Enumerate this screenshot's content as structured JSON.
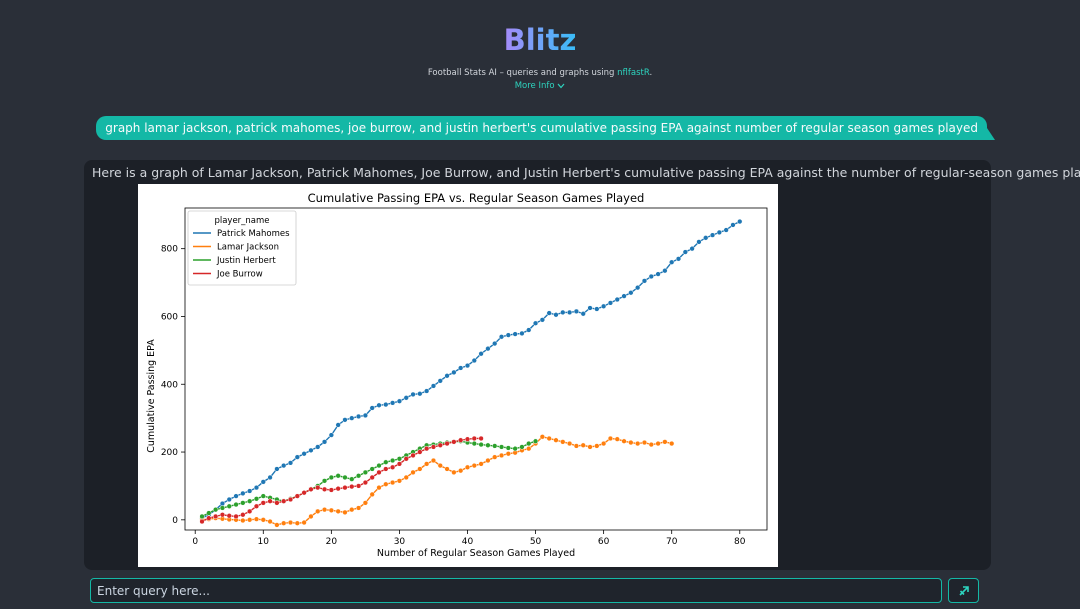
{
  "header": {
    "logo": "Blitz",
    "tagline_prefix": "Football Stats AI – queries and graphs using ",
    "tagline_link": "nflfastR",
    "tagline_suffix": ".",
    "more_info": "More Info"
  },
  "colors": {
    "accent": "#14b8a6",
    "logo_gradient": [
      "#a78bfa",
      "#38bdf8"
    ]
  },
  "conversation": {
    "user_query": "graph lamar jackson, patrick mahomes, joe burrow, and justin herbert's cumulative passing EPA against number of regular season games played",
    "response_text": "Here is a graph of Lamar Jackson, Patrick Mahomes, Joe Burrow, and Justin Herbert's cumulative passing EPA against the number of regular-season games played."
  },
  "input": {
    "placeholder": "Enter query here...",
    "send_icon": "send-icon"
  },
  "chart_data": {
    "type": "line",
    "title": "Cumulative Passing EPA vs. Regular Season Games Played",
    "xlabel": "Number of Regular Season Games Played",
    "ylabel": "Cumulative Passing EPA",
    "xlim": [
      -1.5,
      84
    ],
    "ylim": [
      -30,
      920
    ],
    "xticks": [
      0,
      10,
      20,
      30,
      40,
      50,
      60,
      70,
      80
    ],
    "yticks": [
      0,
      200,
      400,
      600,
      800
    ],
    "legend_title": "player_name",
    "legend_position": "top-left",
    "grid": false,
    "series": [
      {
        "name": "Patrick Mahomes",
        "color": "#1f77b4",
        "points": [
          [
            1,
            5
          ],
          [
            2,
            15
          ],
          [
            3,
            30
          ],
          [
            4,
            48
          ],
          [
            5,
            60
          ],
          [
            6,
            70
          ],
          [
            7,
            78
          ],
          [
            8,
            85
          ],
          [
            9,
            95
          ],
          [
            10,
            112
          ],
          [
            11,
            125
          ],
          [
            12,
            150
          ],
          [
            13,
            160
          ],
          [
            14,
            168
          ],
          [
            15,
            185
          ],
          [
            16,
            195
          ],
          [
            17,
            205
          ],
          [
            18,
            215
          ],
          [
            19,
            230
          ],
          [
            20,
            250
          ],
          [
            21,
            280
          ],
          [
            22,
            295
          ],
          [
            23,
            300
          ],
          [
            24,
            305
          ],
          [
            25,
            308
          ],
          [
            26,
            330
          ],
          [
            27,
            338
          ],
          [
            28,
            340
          ],
          [
            29,
            345
          ],
          [
            30,
            350
          ],
          [
            31,
            360
          ],
          [
            32,
            370
          ],
          [
            33,
            372
          ],
          [
            34,
            380
          ],
          [
            35,
            395
          ],
          [
            36,
            410
          ],
          [
            37,
            425
          ],
          [
            38,
            435
          ],
          [
            39,
            448
          ],
          [
            40,
            455
          ],
          [
            41,
            470
          ],
          [
            42,
            490
          ],
          [
            43,
            505
          ],
          [
            44,
            520
          ],
          [
            45,
            540
          ],
          [
            46,
            545
          ],
          [
            47,
            548
          ],
          [
            48,
            550
          ],
          [
            49,
            560
          ],
          [
            50,
            580
          ],
          [
            51,
            590
          ],
          [
            52,
            610
          ],
          [
            53,
            605
          ],
          [
            54,
            612
          ],
          [
            55,
            612
          ],
          [
            56,
            615
          ],
          [
            57,
            608
          ],
          [
            58,
            625
          ],
          [
            59,
            622
          ],
          [
            60,
            630
          ],
          [
            61,
            640
          ],
          [
            62,
            650
          ],
          [
            63,
            660
          ],
          [
            64,
            670
          ],
          [
            65,
            685
          ],
          [
            66,
            705
          ],
          [
            67,
            718
          ],
          [
            68,
            725
          ],
          [
            69,
            735
          ],
          [
            70,
            760
          ],
          [
            71,
            770
          ],
          [
            72,
            790
          ],
          [
            73,
            800
          ],
          [
            74,
            820
          ],
          [
            75,
            832
          ],
          [
            76,
            840
          ],
          [
            77,
            848
          ],
          [
            78,
            855
          ],
          [
            79,
            870
          ],
          [
            80,
            880
          ]
        ]
      },
      {
        "name": "Lamar Jackson",
        "color": "#ff7f0e",
        "points": [
          [
            1,
            0
          ],
          [
            2,
            2
          ],
          [
            3,
            5
          ],
          [
            4,
            3
          ],
          [
            5,
            1
          ],
          [
            6,
            0
          ],
          [
            7,
            -2
          ],
          [
            8,
            0
          ],
          [
            9,
            2
          ],
          [
            10,
            0
          ],
          [
            11,
            -5
          ],
          [
            12,
            -15
          ],
          [
            13,
            -10
          ],
          [
            14,
            -8
          ],
          [
            15,
            -10
          ],
          [
            16,
            -8
          ],
          [
            17,
            10
          ],
          [
            18,
            25
          ],
          [
            19,
            30
          ],
          [
            20,
            28
          ],
          [
            21,
            25
          ],
          [
            22,
            22
          ],
          [
            23,
            30
          ],
          [
            24,
            35
          ],
          [
            25,
            50
          ],
          [
            26,
            75
          ],
          [
            27,
            95
          ],
          [
            28,
            105
          ],
          [
            29,
            110
          ],
          [
            30,
            115
          ],
          [
            31,
            125
          ],
          [
            32,
            140
          ],
          [
            33,
            150
          ],
          [
            34,
            165
          ],
          [
            35,
            175
          ],
          [
            36,
            160
          ],
          [
            37,
            150
          ],
          [
            38,
            140
          ],
          [
            39,
            145
          ],
          [
            40,
            155
          ],
          [
            41,
            160
          ],
          [
            42,
            165
          ],
          [
            43,
            175
          ],
          [
            44,
            185
          ],
          [
            45,
            190
          ],
          [
            46,
            195
          ],
          [
            47,
            198
          ],
          [
            48,
            205
          ],
          [
            49,
            210
          ],
          [
            50,
            225
          ],
          [
            51,
            245
          ],
          [
            52,
            240
          ],
          [
            53,
            235
          ],
          [
            54,
            230
          ],
          [
            55,
            225
          ],
          [
            56,
            218
          ],
          [
            57,
            220
          ],
          [
            58,
            215
          ],
          [
            59,
            218
          ],
          [
            60,
            225
          ],
          [
            61,
            240
          ],
          [
            62,
            238
          ],
          [
            63,
            232
          ],
          [
            64,
            228
          ],
          [
            65,
            225
          ],
          [
            66,
            228
          ],
          [
            67,
            222
          ],
          [
            68,
            225
          ],
          [
            69,
            230
          ],
          [
            70,
            225
          ]
        ]
      },
      {
        "name": "Justin Herbert",
        "color": "#2ca02c",
        "points": [
          [
            1,
            10
          ],
          [
            2,
            20
          ],
          [
            3,
            30
          ],
          [
            4,
            35
          ],
          [
            5,
            40
          ],
          [
            6,
            45
          ],
          [
            7,
            50
          ],
          [
            8,
            55
          ],
          [
            9,
            62
          ],
          [
            10,
            70
          ],
          [
            11,
            65
          ],
          [
            12,
            60
          ],
          [
            13,
            55
          ],
          [
            14,
            62
          ],
          [
            15,
            70
          ],
          [
            16,
            80
          ],
          [
            17,
            90
          ],
          [
            18,
            100
          ],
          [
            19,
            115
          ],
          [
            20,
            125
          ],
          [
            21,
            130
          ],
          [
            22,
            125
          ],
          [
            23,
            120
          ],
          [
            24,
            130
          ],
          [
            25,
            140
          ],
          [
            26,
            150
          ],
          [
            27,
            160
          ],
          [
            28,
            170
          ],
          [
            29,
            175
          ],
          [
            30,
            180
          ],
          [
            31,
            190
          ],
          [
            32,
            200
          ],
          [
            33,
            210
          ],
          [
            34,
            220
          ],
          [
            35,
            222
          ],
          [
            36,
            225
          ],
          [
            37,
            228
          ],
          [
            38,
            230
          ],
          [
            39,
            232
          ],
          [
            40,
            228
          ],
          [
            41,
            225
          ],
          [
            42,
            222
          ],
          [
            43,
            220
          ],
          [
            44,
            218
          ],
          [
            45,
            215
          ],
          [
            46,
            212
          ],
          [
            47,
            210
          ],
          [
            48,
            215
          ],
          [
            49,
            225
          ],
          [
            50,
            232
          ]
        ]
      },
      {
        "name": "Joe Burrow",
        "color": "#d62728",
        "points": [
          [
            1,
            -5
          ],
          [
            2,
            5
          ],
          [
            3,
            10
          ],
          [
            4,
            15
          ],
          [
            5,
            12
          ],
          [
            6,
            10
          ],
          [
            7,
            15
          ],
          [
            8,
            25
          ],
          [
            9,
            40
          ],
          [
            10,
            50
          ],
          [
            11,
            55
          ],
          [
            12,
            50
          ],
          [
            13,
            55
          ],
          [
            14,
            60
          ],
          [
            15,
            70
          ],
          [
            16,
            80
          ],
          [
            17,
            90
          ],
          [
            18,
            95
          ],
          [
            19,
            90
          ],
          [
            20,
            88
          ],
          [
            21,
            92
          ],
          [
            22,
            95
          ],
          [
            23,
            98
          ],
          [
            24,
            100
          ],
          [
            25,
            110
          ],
          [
            26,
            125
          ],
          [
            27,
            140
          ],
          [
            28,
            150
          ],
          [
            29,
            155
          ],
          [
            30,
            165
          ],
          [
            31,
            180
          ],
          [
            32,
            190
          ],
          [
            33,
            200
          ],
          [
            34,
            210
          ],
          [
            35,
            215
          ],
          [
            36,
            220
          ],
          [
            37,
            225
          ],
          [
            38,
            230
          ],
          [
            39,
            235
          ],
          [
            40,
            238
          ],
          [
            41,
            240
          ],
          [
            42,
            240
          ]
        ]
      }
    ]
  }
}
